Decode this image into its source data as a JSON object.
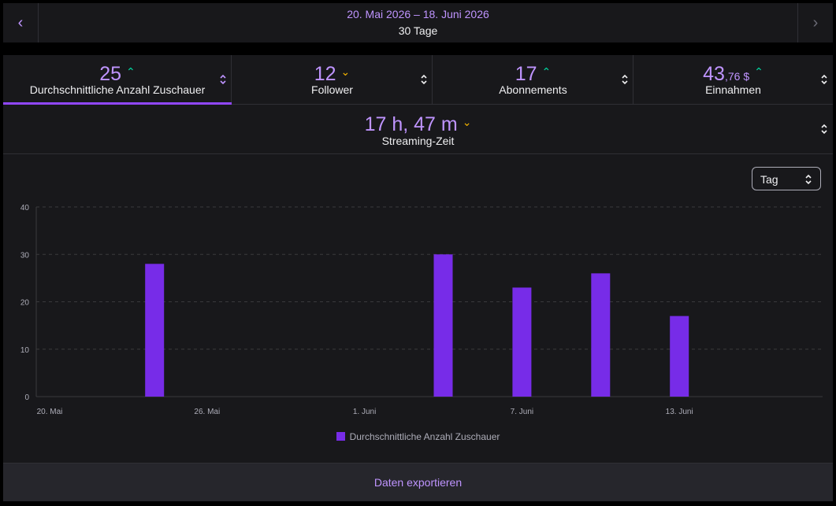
{
  "date_bar": {
    "range": "20. Mai 2026 – 18. Juni 2026",
    "days": "30 Tage",
    "prev_icon": "chevron-left-icon",
    "next_icon": "chevron-right-icon"
  },
  "metrics": [
    {
      "value": "25",
      "label": "Durchschnittliche Anzahl Zuschauer",
      "trend": "up",
      "active": true
    },
    {
      "value": "12",
      "label": "Follower",
      "trend": "down",
      "active": false
    },
    {
      "value": "17",
      "label": "Abonnements",
      "trend": "up",
      "active": false
    },
    {
      "value": "43",
      "value_decimal": ",76 $",
      "label": "Einnahmen",
      "trend": "up",
      "active": false
    }
  ],
  "streaming": {
    "value": "17 h, 47 m",
    "label": "Streaming-Zeit",
    "trend": "down"
  },
  "interval_select": {
    "value": "Tag"
  },
  "colors": {
    "accent": "#bf94ff",
    "bar": "#772ce8",
    "trend_up": "#00d6a0",
    "trend_down": "#f5b400"
  },
  "chart_data": {
    "type": "bar",
    "categories": [
      "20. Mai",
      "21. Mai",
      "22. Mai",
      "23. Mai",
      "24. Mai",
      "25. Mai",
      "26. Mai",
      "27. Mai",
      "28. Mai",
      "29. Mai",
      "30. Mai",
      "31. Mai",
      "1. Juni",
      "2. Juni",
      "3. Juni",
      "4. Juni",
      "5. Juni",
      "6. Juni",
      "7. Juni",
      "8. Juni",
      "9. Juni",
      "10. Juni",
      "11. Juni",
      "12. Juni",
      "13. Juni",
      "14. Juni",
      "15. Juni",
      "16. Juni",
      "17. Juni",
      "18. Juni"
    ],
    "series": [
      {
        "name": "Durchschnittliche Anzahl Zuschauer",
        "values": [
          0,
          0,
          0,
          0,
          28,
          0,
          0,
          0,
          0,
          0,
          0,
          0,
          0,
          0,
          0,
          30,
          0,
          0,
          23,
          0,
          0,
          26,
          0,
          0,
          17,
          0,
          0,
          0,
          0,
          0
        ]
      }
    ],
    "x_tick_labels": [
      "20. Mai",
      "26. Mai",
      "1. Juni",
      "7. Juni",
      "13. Juni"
    ],
    "y_ticks": [
      0,
      10,
      20,
      30,
      40
    ],
    "ylim": [
      0,
      40
    ],
    "grid": true,
    "legend": "bottom-center"
  },
  "export": {
    "label": "Daten exportieren"
  }
}
